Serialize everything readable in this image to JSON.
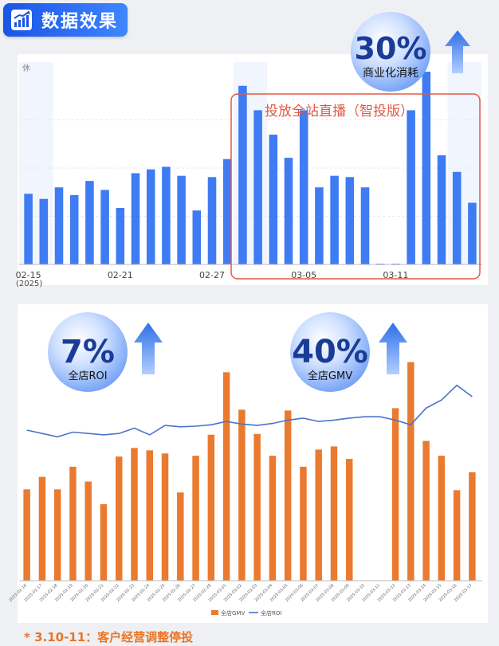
{
  "header": {
    "title": "数据效果",
    "icon": "chart-up-icon"
  },
  "callouts": {
    "commercial": {
      "value": "30%",
      "label": "商业化消耗"
    },
    "roi": {
      "value": "7%",
      "label": "全店ROI"
    },
    "gmv": {
      "value": "40%",
      "label": "全店GMV"
    }
  },
  "annotation": {
    "label": "投放全站直播（智投版）"
  },
  "footer": {
    "note": "* 3.10-11：客户经营调整停投"
  },
  "colors": {
    "blue_bar": "#3f7cf3",
    "orange_bar": "#ea7a30",
    "roi_line": "#4a74c9",
    "annotation_border": "#e05a46"
  },
  "chart_data": [
    {
      "type": "bar",
      "top_tag": "休",
      "year_label": "(2025)",
      "x_ticks": [
        "02-15",
        "02-21",
        "02-27",
        "03-05",
        "03-11"
      ],
      "x_tick_index": [
        0,
        6,
        12,
        18,
        24
      ],
      "series": [
        {
          "values": [
            55,
            51,
            60,
            54,
            65,
            58,
            44,
            71,
            74,
            76,
            69,
            42,
            68,
            82,
            139,
            120,
            101,
            83,
            120,
            60,
            69,
            68,
            60,
            0,
            0,
            120,
            150,
            85,
            72,
            48
          ]
        }
      ],
      "ylim": [
        0,
        150
      ]
    },
    {
      "type": "bar+line",
      "categories": [
        "2025-02-16",
        "2025-02-17",
        "2025-02-18",
        "2025-02-19",
        "2025-02-20",
        "2025-02-21",
        "2025-02-22",
        "2025-02-23",
        "2025-02-24",
        "2025-02-25",
        "2025-02-26",
        "2025-02-27",
        "2025-02-28",
        "2025-03-01",
        "2025-03-02",
        "2025-03-03",
        "2025-03-04",
        "2025-03-05",
        "2025-03-06",
        "2025-03-07",
        "2025-03-08",
        "2025-03-09",
        "2025-03-10",
        "2025-03-11",
        "2025-03-12",
        "2025-03-13",
        "2025-03-14",
        "2025-03-15",
        "2025-03-16",
        "2025-03-17"
      ],
      "series": [
        {
          "name": "全店GMV",
          "type": "bar",
          "values": [
            117,
            133,
            117,
            146,
            127,
            98,
            159,
            170,
            167,
            163,
            113,
            160,
            187,
            267,
            219,
            188,
            160,
            218,
            146,
            168,
            172,
            156,
            0,
            0,
            221,
            280,
            179,
            160,
            116,
            139
          ]
        },
        {
          "name": "全店ROI",
          "type": "line",
          "values": [
            2.25,
            2.2,
            2.15,
            2.22,
            2.2,
            2.18,
            2.2,
            2.28,
            2.18,
            2.32,
            2.3,
            2.31,
            2.33,
            2.38,
            2.34,
            2.32,
            2.35,
            2.4,
            2.43,
            2.38,
            2.4,
            2.43,
            2.45,
            2.45,
            2.4,
            2.33,
            2.58,
            2.7,
            2.92,
            2.75
          ]
        }
      ],
      "legend": "bottom-center",
      "bar_ylim": [
        0,
        300
      ],
      "line_ylim": [
        0,
        3.5
      ]
    }
  ]
}
